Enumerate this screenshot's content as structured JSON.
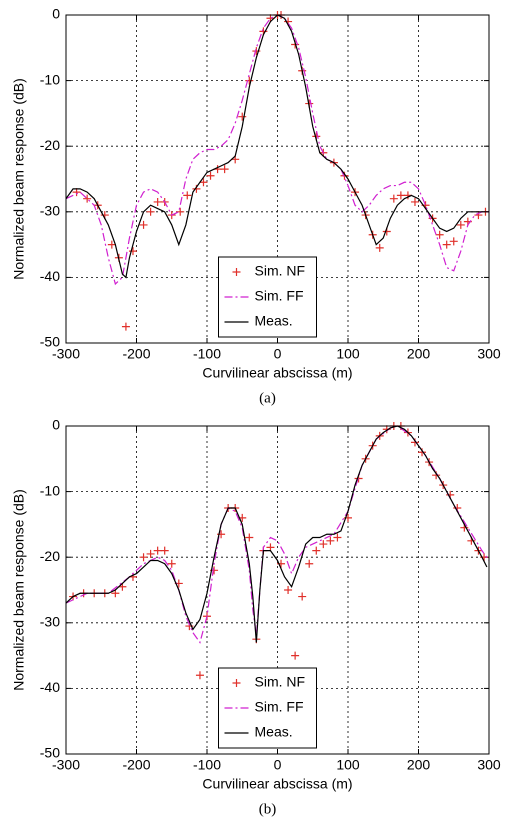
{
  "chart_data": [
    {
      "type": "line",
      "caption": "(a)",
      "xlabel": "Curvilinear abscissa (m)",
      "ylabel": "Normalized beam response (dB)",
      "xlim": [
        -300,
        300
      ],
      "ylim": [
        -50,
        0
      ],
      "xticks": [
        -300,
        -200,
        -100,
        0,
        100,
        200,
        300
      ],
      "yticks": [
        0,
        -10,
        -20,
        -30,
        -40,
        -50
      ],
      "grid": true,
      "legend": "lower center",
      "series": [
        {
          "name": "Sim. NF",
          "color": "#e0302a",
          "style": "markers",
          "x": [
            -285,
            -270,
            -255,
            -245,
            -235,
            -225,
            -215,
            -205,
            -190,
            -180,
            -170,
            -160,
            -150,
            -138,
            -128,
            -115,
            -105,
            -95,
            -85,
            -75,
            -60,
            -50,
            -40,
            -30,
            -20,
            -10,
            0,
            5,
            15,
            25,
            35,
            45,
            55,
            65,
            80,
            95,
            110,
            125,
            135,
            145,
            155,
            165,
            175,
            185,
            195,
            210,
            220,
            230,
            240,
            250,
            260,
            270,
            285,
            295
          ],
          "values": [
            -27,
            -28,
            -29,
            -30.5,
            -35,
            -37,
            -47.5,
            -36,
            -32,
            -30,
            -28.5,
            -28.5,
            -30.5,
            -30,
            -27.5,
            -26.5,
            -25.5,
            -24.5,
            -23.5,
            -23.5,
            -22,
            -15.5,
            -10,
            -5.5,
            -2.5,
            -0.5,
            0,
            0,
            -1,
            -4.5,
            -8.5,
            -13.5,
            -18.5,
            -21,
            -22.5,
            -24.5,
            -27,
            -30.5,
            -33.5,
            -35.5,
            -33,
            -28,
            -27.5,
            -27.5,
            -28.5,
            -29,
            -31,
            -33.5,
            -35,
            -34.5,
            -32,
            -31.5,
            -30.5,
            -30
          ]
        },
        {
          "name": "Sim. FF",
          "color": "#d020d0",
          "style": "dashdot",
          "x": [
            -300,
            -280,
            -260,
            -250,
            -240,
            -230,
            -220,
            -210,
            -200,
            -190,
            -180,
            -170,
            -160,
            -150,
            -140,
            -130,
            -120,
            -110,
            -100,
            -90,
            -80,
            -70,
            -60,
            -50,
            -40,
            -30,
            -20,
            -10,
            0,
            10,
            20,
            30,
            40,
            50,
            60,
            70,
            80,
            90,
            100,
            110,
            120,
            130,
            140,
            150,
            160,
            170,
            180,
            190,
            200,
            210,
            220,
            230,
            240,
            250,
            260,
            270,
            280,
            290,
            300
          ],
          "values": [
            -28,
            -27,
            -29,
            -32,
            -37,
            -41,
            -40,
            -34,
            -29,
            -27,
            -26.5,
            -27,
            -28.5,
            -30.5,
            -30,
            -25,
            -22,
            -21,
            -20.5,
            -20.5,
            -20,
            -19,
            -16.5,
            -13,
            -9,
            -5,
            -2,
            -0.5,
            0,
            -0.5,
            -2,
            -5,
            -9.5,
            -15,
            -20,
            -22,
            -22.5,
            -23.5,
            -26,
            -29,
            -30,
            -29,
            -27.5,
            -26.5,
            -26,
            -26,
            -25.5,
            -25.5,
            -26.5,
            -29,
            -32,
            -35,
            -38.5,
            -39,
            -36,
            -32,
            -30.5,
            -30,
            -30
          ]
        },
        {
          "name": "Meas.",
          "color": "#000000",
          "style": "solid",
          "x": [
            -300,
            -290,
            -280,
            -270,
            -260,
            -250,
            -240,
            -230,
            -220,
            -215,
            -210,
            -200,
            -190,
            -180,
            -170,
            -160,
            -150,
            -140,
            -130,
            -120,
            -110,
            -100,
            -90,
            -80,
            -70,
            -60,
            -50,
            -40,
            -30,
            -20,
            -10,
            0,
            10,
            20,
            30,
            40,
            50,
            60,
            70,
            80,
            90,
            100,
            110,
            120,
            130,
            140,
            150,
            160,
            170,
            180,
            190,
            200,
            210,
            220,
            230,
            240,
            250,
            260,
            270,
            280,
            290,
            300
          ],
          "values": [
            -28,
            -26.5,
            -26.5,
            -27,
            -28,
            -30,
            -32,
            -35,
            -39.5,
            -40,
            -37,
            -33,
            -30,
            -29,
            -29.5,
            -30,
            -32,
            -35,
            -32,
            -27,
            -25.5,
            -24,
            -23.5,
            -23,
            -22.5,
            -21.5,
            -17,
            -11,
            -6.5,
            -3,
            -1,
            0,
            -0.5,
            -2.5,
            -6,
            -11,
            -17,
            -21,
            -22,
            -22.5,
            -23.5,
            -25,
            -27,
            -29,
            -32,
            -35,
            -34,
            -31,
            -29,
            -28,
            -27.5,
            -28,
            -29.5,
            -31,
            -32.5,
            -33,
            -32.5,
            -31,
            -30,
            -30,
            -30,
            -30
          ]
        }
      ]
    },
    {
      "type": "line",
      "caption": "(b)",
      "xlabel": "Curvilinear abscissa (m)",
      "ylabel": "Normalized beam response (dB)",
      "xlim": [
        -300,
        300
      ],
      "ylim": [
        -50,
        0
      ],
      "xticks": [
        -300,
        -200,
        -100,
        0,
        100,
        200,
        300
      ],
      "yticks": [
        0,
        -10,
        -20,
        -30,
        -40,
        -50
      ],
      "grid": true,
      "legend": "lower center",
      "series": [
        {
          "name": "Sim. NF",
          "color": "#e0302a",
          "style": "markers",
          "x": [
            -290,
            -275,
            -260,
            -245,
            -230,
            -220,
            -205,
            -190,
            -180,
            -170,
            -160,
            -150,
            -140,
            -125,
            -110,
            -100,
            -90,
            -80,
            -70,
            -60,
            -50,
            -40,
            -30,
            -20,
            -10,
            5,
            15,
            25,
            35,
            45,
            55,
            65,
            75,
            85,
            100,
            115,
            125,
            135,
            145,
            155,
            165,
            175,
            185,
            195,
            205,
            215,
            225,
            235,
            245,
            255,
            265,
            275,
            285,
            293
          ],
          "values": [
            -26,
            -25.5,
            -25.5,
            -25.5,
            -25.5,
            -24.5,
            -23,
            -20,
            -19.5,
            -19,
            -19,
            -21,
            -24,
            -30.5,
            -38,
            -29,
            -22,
            -16.5,
            -12.5,
            -12.5,
            -14,
            -17,
            -32.5,
            -19,
            -18.5,
            -21,
            -25,
            -35,
            -26,
            -21,
            -19,
            -18,
            -17.5,
            -17,
            -14,
            -8,
            -5,
            -3,
            -1.5,
            -0.5,
            0,
            0,
            -1,
            -2.5,
            -4,
            -5.5,
            -7.5,
            -9,
            -10.5,
            -12.5,
            -15.5,
            -17.5,
            -19,
            -20
          ]
        },
        {
          "name": "Sim. FF",
          "color": "#d020d0",
          "style": "dashdot",
          "x": [
            -300,
            -270,
            -240,
            -210,
            -190,
            -170,
            -160,
            -150,
            -140,
            -130,
            -120,
            -110,
            -100,
            -90,
            -80,
            -70,
            -60,
            -50,
            -40,
            -35,
            -30,
            -25,
            -20,
            -10,
            0,
            10,
            20,
            30,
            40,
            60,
            80,
            100,
            120,
            140,
            160,
            170,
            190,
            210,
            230,
            250,
            270,
            290,
            300
          ],
          "values": [
            -27,
            -25.5,
            -25.5,
            -23,
            -21,
            -20,
            -20.5,
            -22,
            -25,
            -29,
            -31.5,
            -33,
            -29,
            -21,
            -15,
            -12.5,
            -13,
            -15.5,
            -22,
            -28,
            -32,
            -25,
            -18.5,
            -17,
            -17.5,
            -19.5,
            -22.5,
            -20,
            -18.5,
            -17.5,
            -16.5,
            -13,
            -6,
            -2,
            -0.3,
            0,
            -1.5,
            -4.5,
            -8,
            -12,
            -15.5,
            -19,
            -20.5
          ]
        },
        {
          "name": "Meas.",
          "color": "#000000",
          "style": "solid",
          "x": [
            -300,
            -290,
            -280,
            -260,
            -240,
            -230,
            -220,
            -210,
            -200,
            -190,
            -180,
            -170,
            -160,
            -150,
            -140,
            -130,
            -120,
            -110,
            -100,
            -90,
            -80,
            -70,
            -60,
            -50,
            -40,
            -35,
            -30,
            -25,
            -20,
            -10,
            0,
            10,
            20,
            30,
            40,
            50,
            60,
            70,
            80,
            90,
            100,
            110,
            120,
            130,
            140,
            150,
            160,
            170,
            180,
            190,
            200,
            210,
            220,
            230,
            240,
            250,
            260,
            270,
            280,
            290,
            297
          ],
          "values": [
            -27,
            -26,
            -25.5,
            -25.5,
            -25.5,
            -25,
            -24,
            -23,
            -22.5,
            -21.5,
            -20.5,
            -20.5,
            -21,
            -22.5,
            -25,
            -28.5,
            -31,
            -29.5,
            -25.5,
            -20,
            -15,
            -12.5,
            -12.5,
            -15,
            -21,
            -26,
            -33,
            -25,
            -19,
            -19,
            -20.5,
            -23,
            -24.5,
            -21.5,
            -18,
            -17,
            -17,
            -16.5,
            -16.5,
            -16,
            -13,
            -9,
            -6,
            -4,
            -2,
            -1,
            -0.3,
            0,
            -0.5,
            -1.5,
            -3,
            -4.5,
            -6.5,
            -8,
            -10,
            -12,
            -14,
            -16,
            -18,
            -20,
            -21.5
          ]
        }
      ]
    }
  ]
}
